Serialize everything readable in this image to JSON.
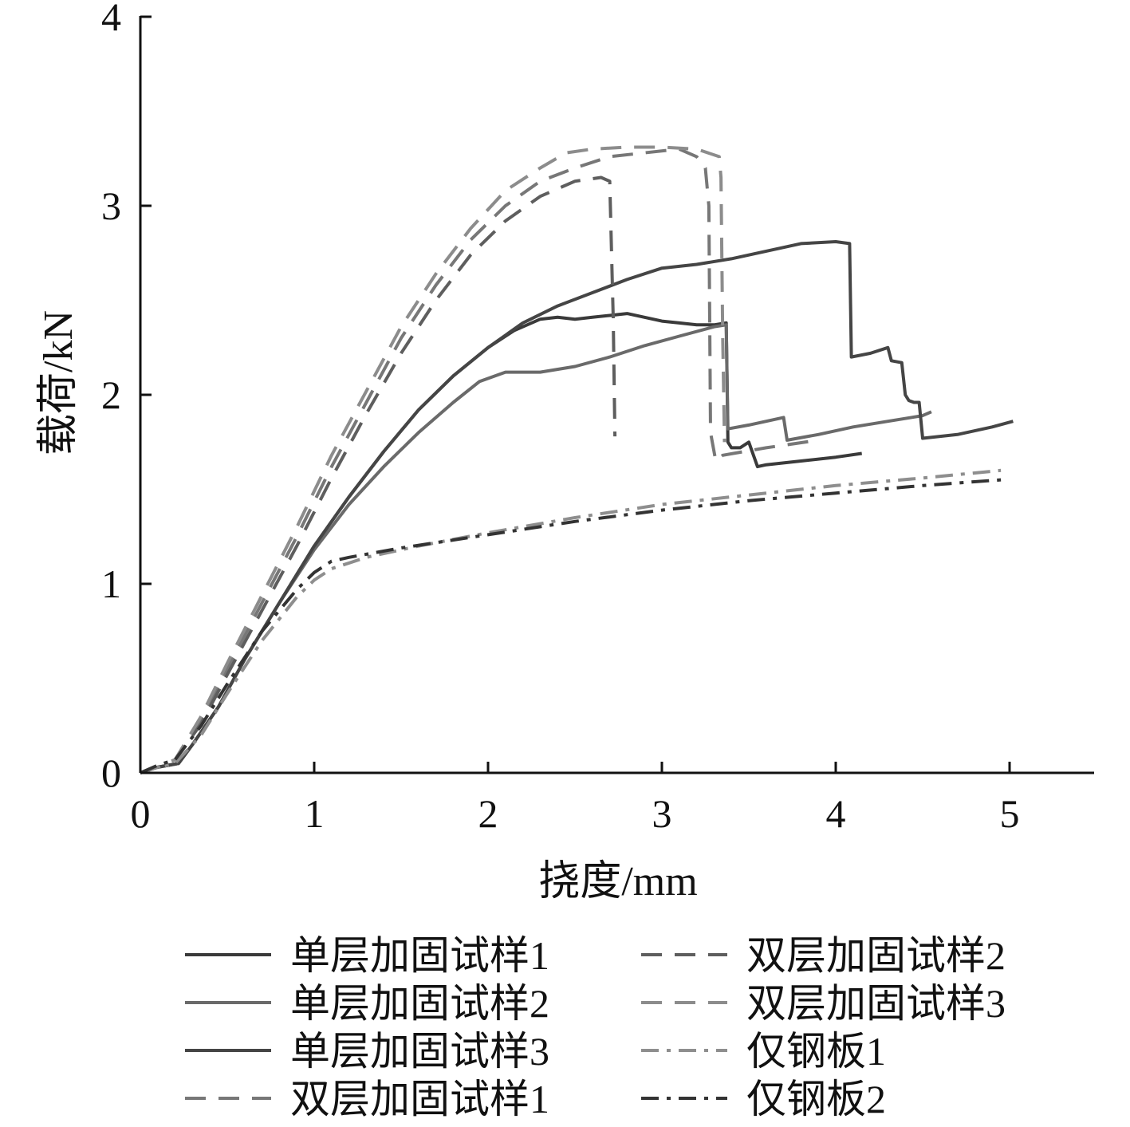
{
  "chart_data": {
    "type": "line",
    "title": "",
    "xlabel": "挠度/mm",
    "ylabel": "载荷/kN",
    "xlim": [
      0,
      5.5
    ],
    "ylim": [
      0,
      4
    ],
    "xticks": [
      0,
      1,
      2,
      3,
      4,
      5
    ],
    "yticks": [
      0,
      1,
      2,
      3,
      4
    ],
    "grid": false,
    "legend_position": "bottom",
    "legend_columns": 2,
    "series": [
      {
        "name": "单层加固试样1",
        "color": "#3a3a3a",
        "dash": "solid",
        "x": [
          0,
          0.1,
          0.22,
          0.3,
          0.45,
          0.6,
          0.8,
          1.0,
          1.2,
          1.4,
          1.6,
          1.8,
          2.0,
          2.15,
          2.3,
          2.4,
          2.5,
          2.6,
          2.7,
          2.8,
          2.9,
          3.0,
          3.1,
          3.2,
          3.3,
          3.37,
          3.38,
          3.4,
          3.45,
          3.5,
          3.55,
          3.6,
          3.8,
          4.0,
          4.15
        ],
        "y": [
          0,
          0.03,
          0.05,
          0.15,
          0.35,
          0.6,
          0.9,
          1.2,
          1.46,
          1.7,
          1.92,
          2.1,
          2.25,
          2.34,
          2.4,
          2.41,
          2.4,
          2.41,
          2.42,
          2.43,
          2.41,
          2.39,
          2.38,
          2.37,
          2.37,
          2.38,
          1.75,
          1.72,
          1.72,
          1.75,
          1.62,
          1.63,
          1.65,
          1.67,
          1.69
        ]
      },
      {
        "name": "单层加固试样2",
        "color": "#6a6a6a",
        "dash": "solid",
        "x": [
          0,
          0.1,
          0.22,
          0.3,
          0.45,
          0.6,
          0.8,
          1.0,
          1.2,
          1.4,
          1.6,
          1.8,
          1.95,
          2.1,
          2.3,
          2.5,
          2.7,
          2.9,
          3.1,
          3.3,
          3.37,
          3.38,
          3.5,
          3.7,
          3.72,
          3.9,
          4.1,
          4.3,
          4.5,
          4.55
        ],
        "y": [
          0,
          0.03,
          0.05,
          0.15,
          0.35,
          0.6,
          0.9,
          1.18,
          1.42,
          1.62,
          1.8,
          1.96,
          2.07,
          2.12,
          2.12,
          2.15,
          2.2,
          2.26,
          2.31,
          2.36,
          2.37,
          1.82,
          1.84,
          1.88,
          1.76,
          1.79,
          1.83,
          1.86,
          1.89,
          1.91
        ]
      },
      {
        "name": "单层加固试样3",
        "color": "#454545",
        "dash": "solid",
        "x": [
          0,
          0.1,
          0.22,
          0.3,
          0.45,
          0.6,
          0.8,
          1.0,
          1.2,
          1.4,
          1.6,
          1.8,
          2.0,
          2.2,
          2.4,
          2.6,
          2.8,
          3.0,
          3.2,
          3.4,
          3.6,
          3.8,
          4.0,
          4.08,
          4.09,
          4.2,
          4.3,
          4.32,
          4.38,
          4.4,
          4.42,
          4.45,
          4.48,
          4.5,
          4.7,
          4.9,
          5.02
        ],
        "y": [
          0,
          0.03,
          0.05,
          0.15,
          0.35,
          0.6,
          0.9,
          1.2,
          1.46,
          1.7,
          1.92,
          2.1,
          2.25,
          2.38,
          2.47,
          2.54,
          2.61,
          2.67,
          2.69,
          2.72,
          2.76,
          2.8,
          2.81,
          2.8,
          2.2,
          2.22,
          2.25,
          2.18,
          2.17,
          2.0,
          1.97,
          1.96,
          1.96,
          1.77,
          1.79,
          1.83,
          1.86
        ]
      },
      {
        "name": "双层加固试样1",
        "color": "#777777",
        "dash": "long-dash",
        "x": [
          0,
          0.1,
          0.2,
          0.35,
          0.5,
          0.7,
          0.9,
          1.1,
          1.3,
          1.5,
          1.7,
          1.9,
          2.1,
          2.3,
          2.5,
          2.7,
          2.9,
          3.1,
          3.2,
          3.25,
          3.27,
          3.28,
          3.31,
          3.35,
          3.6,
          3.9
        ],
        "y": [
          0,
          0.03,
          0.07,
          0.28,
          0.55,
          0.9,
          1.25,
          1.62,
          1.96,
          2.3,
          2.58,
          2.82,
          3.0,
          3.13,
          3.2,
          3.26,
          3.28,
          3.3,
          3.26,
          3.2,
          3.0,
          1.8,
          1.65,
          1.68,
          1.72,
          1.76
        ]
      },
      {
        "name": "双层加固试样2",
        "color": "#5e5e5e",
        "dash": "long-dash",
        "x": [
          0,
          0.1,
          0.2,
          0.35,
          0.5,
          0.7,
          0.9,
          1.1,
          1.3,
          1.5,
          1.7,
          1.9,
          2.1,
          2.3,
          2.5,
          2.65,
          2.7,
          2.72,
          2.73
        ],
        "y": [
          0,
          0.03,
          0.07,
          0.26,
          0.52,
          0.86,
          1.2,
          1.56,
          1.9,
          2.22,
          2.5,
          2.74,
          2.92,
          3.05,
          3.13,
          3.15,
          3.13,
          2.4,
          1.78
        ]
      },
      {
        "name": "双层加固试样3",
        "color": "#8c8c8c",
        "dash": "long-dash",
        "x": [
          0,
          0.1,
          0.2,
          0.35,
          0.5,
          0.7,
          0.9,
          1.1,
          1.3,
          1.5,
          1.7,
          1.9,
          2.1,
          2.3,
          2.45,
          2.6,
          2.8,
          3.0,
          3.2,
          3.33,
          3.34,
          3.35,
          3.36
        ],
        "y": [
          0,
          0.03,
          0.07,
          0.3,
          0.58,
          0.94,
          1.3,
          1.68,
          2.02,
          2.36,
          2.64,
          2.88,
          3.08,
          3.2,
          3.28,
          3.3,
          3.31,
          3.31,
          3.3,
          3.26,
          3.15,
          2.3,
          1.75
        ]
      },
      {
        "name": "仅钢板1",
        "color": "#8e8e8e",
        "dash": "dash-dot",
        "x": [
          0,
          0.1,
          0.2,
          0.35,
          0.5,
          0.7,
          0.9,
          1.0,
          1.1,
          1.3,
          1.6,
          2.0,
          2.5,
          3.0,
          3.5,
          4.0,
          4.5,
          4.95
        ],
        "y": [
          0,
          0.03,
          0.05,
          0.2,
          0.42,
          0.7,
          0.93,
          1.02,
          1.08,
          1.14,
          1.2,
          1.27,
          1.35,
          1.42,
          1.47,
          1.52,
          1.56,
          1.6
        ]
      },
      {
        "name": "仅钢板2",
        "color": "#333333",
        "dash": "dash-dot",
        "x": [
          0,
          0.1,
          0.2,
          0.35,
          0.5,
          0.7,
          0.9,
          1.0,
          1.1,
          1.2,
          1.5,
          2.0,
          2.5,
          3.0,
          3.5,
          4.0,
          4.5,
          4.95
        ],
        "y": [
          0,
          0.04,
          0.07,
          0.25,
          0.47,
          0.75,
          0.97,
          1.06,
          1.12,
          1.14,
          1.19,
          1.26,
          1.33,
          1.39,
          1.44,
          1.48,
          1.52,
          1.55
        ]
      }
    ]
  }
}
